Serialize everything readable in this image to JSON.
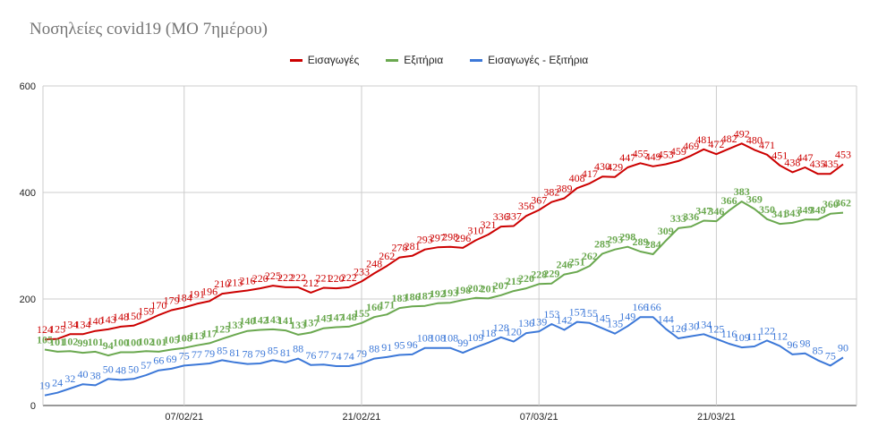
{
  "title": "Νοσηλείες covid19 (ΜΟ 7ημέρου)",
  "colors": {
    "red": "#cc0000",
    "green": "#6aa84f",
    "blue": "#3c78d8",
    "grid": "#cccccc",
    "axis": "#333333"
  },
  "chart_data": {
    "type": "line",
    "title": "Νοσηλείες covid19 (ΜΟ 7ημέρου)",
    "x": [
      "27/01/21",
      "28/01/21",
      "29/01/21",
      "30/01/21",
      "31/01/21",
      "01/02/21",
      "02/02/21",
      "03/02/21",
      "04/02/21",
      "05/02/21",
      "06/02/21",
      "07/02/21",
      "08/02/21",
      "09/02/21",
      "10/02/21",
      "11/02/21",
      "12/02/21",
      "13/02/21",
      "14/02/21",
      "15/02/21",
      "16/02/21",
      "17/02/21",
      "18/02/21",
      "19/02/21",
      "20/02/21",
      "21/02/21",
      "22/02/21",
      "23/02/21",
      "24/02/21",
      "25/02/21",
      "26/02/21",
      "27/02/21",
      "28/02/21",
      "01/03/21",
      "02/03/21",
      "03/03/21",
      "04/03/21",
      "05/03/21",
      "06/03/21",
      "07/03/21",
      "08/03/21",
      "09/03/21",
      "10/03/21",
      "11/03/21",
      "12/03/21",
      "13/03/21",
      "14/03/21",
      "15/03/21",
      "16/03/21",
      "17/03/21",
      "18/03/21",
      "19/03/21",
      "20/03/21",
      "21/03/21",
      "22/03/21",
      "23/03/21",
      "24/03/21",
      "25/03/21",
      "26/03/21",
      "27/03/21",
      "28/03/21",
      "29/03/21",
      "30/03/21",
      "31/03/21"
    ],
    "x_ticks": [
      "07/02/21",
      "21/02/21",
      "07/03/21",
      "21/03/21"
    ],
    "ylim": [
      0,
      600
    ],
    "y_ticks": [
      0,
      200,
      400,
      600
    ],
    "grid": true,
    "legend_position": "top",
    "series": [
      {
        "name": "Εισαγωγές",
        "color": "#cc0000",
        "values": [
          124,
          125,
          134,
          134,
          140,
          143,
          148,
          150,
          159,
          170,
          179,
          184,
          191,
          196,
          210,
          213,
          216,
          220,
          225,
          222,
          222,
          212,
          221,
          220,
          222,
          233,
          248,
          262,
          278,
          281,
          293,
          297,
          298,
          296,
          310,
          321,
          336,
          337,
          356,
          367,
          382,
          389,
          408,
          417,
          430,
          429,
          447,
          455,
          449,
          453,
          459,
          469,
          481,
          472,
          482,
          492,
          480,
          471,
          451,
          438,
          447,
          435,
          435,
          453
        ]
      },
      {
        "name": "Εξιτήρια",
        "color": "#6aa84f",
        "values": [
          105,
          101,
          102,
          99,
          101,
          94,
          100,
          100,
          102,
          101,
          105,
          108,
          113,
          117,
          125,
          133,
          140,
          142,
          143,
          141,
          133,
          137,
          145,
          147,
          148,
          155,
          166,
          171,
          183,
          186,
          187,
          192,
          193,
          198,
          202,
          201,
          207,
          215,
          220,
          228,
          229,
          246,
          251,
          262,
          285,
          293,
          298,
          289,
          284,
          309,
          333,
          336,
          347,
          346,
          366,
          383,
          369,
          350,
          341,
          343,
          349,
          349,
          360,
          362
        ]
      },
      {
        "name": "Εισαγωγές - Εξιτήρια",
        "color": "#3c78d8",
        "values": [
          19,
          24,
          32,
          40,
          38,
          50,
          48,
          50,
          57,
          66,
          69,
          75,
          77,
          79,
          85,
          81,
          78,
          79,
          85,
          81,
          88,
          76,
          77,
          74,
          74,
          79,
          88,
          91,
          95,
          96,
          108,
          108,
          108,
          99,
          109,
          118,
          128,
          120,
          136,
          139,
          153,
          142,
          157,
          155,
          145,
          135,
          149,
          166,
          166,
          144,
          126,
          130,
          134,
          125,
          116,
          109,
          111,
          122,
          112,
          96,
          98,
          85,
          75,
          90
        ]
      }
    ]
  }
}
